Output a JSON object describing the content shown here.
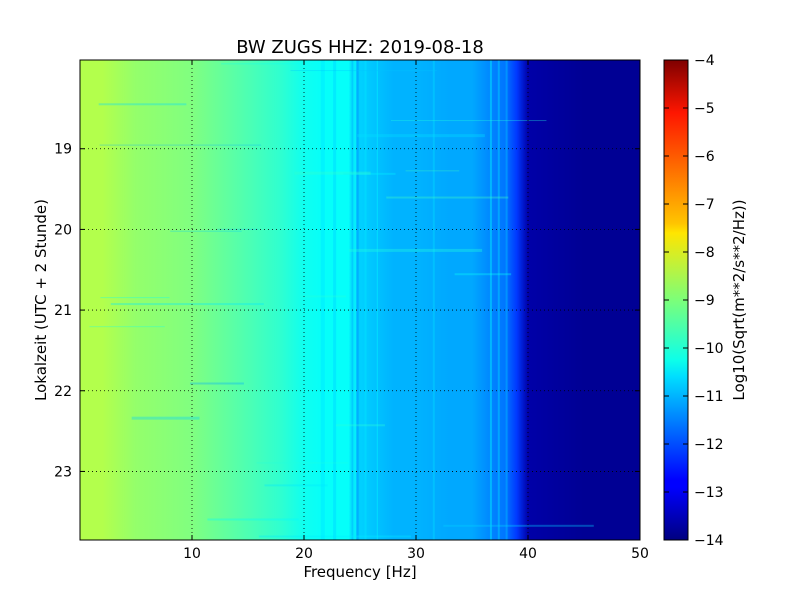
{
  "chart_data": {
    "type": "heatmap",
    "title": "BW ZUGS HHZ: 2019-08-18",
    "xlabel": "Frequency [Hz]",
    "ylabel": "Lokalzeit (UTC + 2 Stunde)",
    "xlim": [
      0,
      50
    ],
    "ylim": [
      17.9,
      23.85
    ],
    "y_inverted": true,
    "x_ticks": [
      10,
      20,
      30,
      40,
      50
    ],
    "y_ticks": [
      19,
      20,
      21,
      22,
      23
    ],
    "grid": true,
    "colormap": "jet",
    "colorbar": {
      "label": "Log10(Sqrt(m**2/s**2/Hz))",
      "min": -14,
      "max": -4,
      "ticks": [
        -4,
        -5,
        -6,
        -7,
        -8,
        -9,
        -10,
        -11,
        -12,
        -13,
        -14
      ]
    },
    "frequency_profile": {
      "frequency_hz": [
        0,
        2,
        5,
        10,
        15,
        18,
        20,
        22,
        24,
        24.5,
        25,
        28,
        30,
        33,
        35,
        37,
        38,
        39,
        40,
        45,
        50
      ],
      "level": [
        -8.5,
        -8.5,
        -8.8,
        -9.0,
        -9.5,
        -9.8,
        -10.1,
        -10.2,
        -10.2,
        -11.0,
        -10.7,
        -11.0,
        -11.0,
        -11.1,
        -11.1,
        -11.5,
        -11.6,
        -12.2,
        -13.6,
        -13.8,
        -13.8
      ]
    }
  }
}
